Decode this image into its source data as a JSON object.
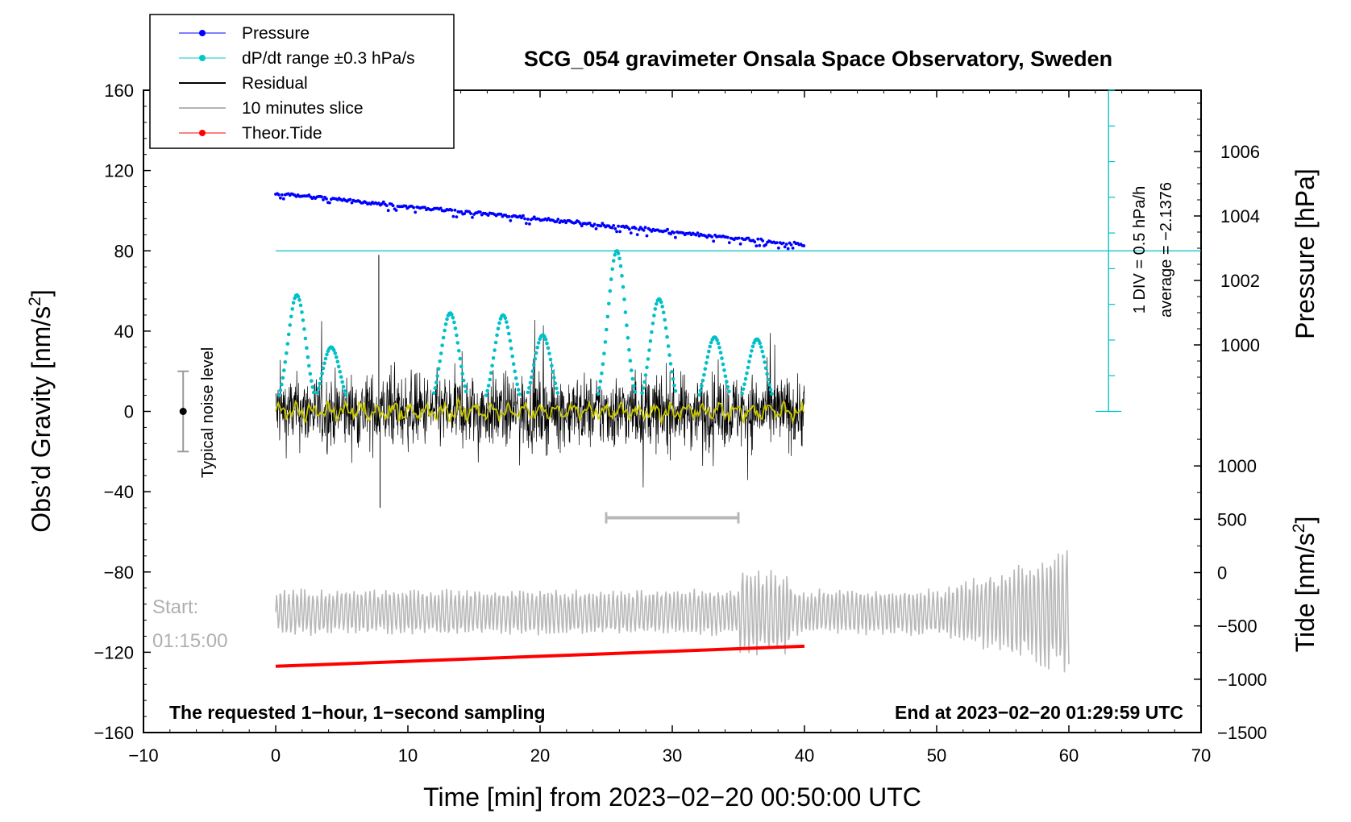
{
  "chart_data": {
    "type": "line",
    "title": "SCG_054 gravimeter Onsala Space Observatory, Sweden",
    "xlabel": "Time [min] from 2023−02−20 00:50:00 UTC",
    "ylabel_left_main": "Obs’d Gravity [nm/s",
    "ylabel_left_sup": "2",
    "ylabel_left_end": "]",
    "ylabel_right_pressure": "Pressure [hPa]",
    "ylabel_right_tide_main": "Tide [nm/s",
    "ylabel_right_tide_sup": "2",
    "ylabel_right_tide_end": "]",
    "xlim": [
      -10,
      70
    ],
    "ylim": [
      -160,
      160
    ],
    "pressure_lim": [
      997.9,
      1007.9
    ],
    "tide_lim": [
      -1500,
      1500
    ],
    "x_ticks": [
      -10,
      0,
      10,
      20,
      30,
      40,
      50,
      60,
      70
    ],
    "x_tick_labels": [
      "−10",
      "0",
      "10",
      "20",
      "30",
      "40",
      "50",
      "60",
      "70"
    ],
    "y_ticks": [
      -160,
      -120,
      -80,
      -40,
      0,
      40,
      80,
      120,
      160
    ],
    "y_tick_labels": [
      "−160",
      "−120",
      "−80",
      "−40",
      "0",
      "40",
      "80",
      "120",
      "160"
    ],
    "pressure_ticks": [
      1000,
      1002,
      1004,
      1006
    ],
    "pressure_tick_labels": [
      "1000",
      "1002",
      "1004",
      "1006"
    ],
    "tide_ticks": [
      -1500,
      -1000,
      -500,
      0,
      500,
      1000
    ],
    "tide_tick_labels": [
      "−1500",
      "−1000",
      "−500",
      "0",
      "500",
      "1000"
    ],
    "legend": [
      {
        "label": "Pressure",
        "color": "#0000ff",
        "marker": true
      },
      {
        "label": "dP/dt range ±0.3 hPa/s",
        "color": "#00c8c8",
        "marker": true
      },
      {
        "label": "Residual",
        "color": "#000000",
        "marker": false
      },
      {
        "label": "10 minutes slice",
        "color": "#b4b4b4",
        "marker": false
      },
      {
        "label": "Theor.Tide",
        "color": "#ff0000",
        "marker": true
      }
    ],
    "series": [
      {
        "name": "Pressure",
        "axis": "pressure",
        "x_range": [
          0,
          40
        ],
        "start": 1004.7,
        "end": 1003.1
      },
      {
        "name": "dP/dt range",
        "axis": "gravity",
        "baseline": 80,
        "peaks": [
          [
            1.6,
            58
          ],
          [
            4.2,
            32
          ],
          [
            13.2,
            49
          ],
          [
            17.2,
            48
          ],
          [
            20.2,
            38
          ],
          [
            25.8,
            80
          ],
          [
            29.0,
            56
          ],
          [
            33.2,
            37
          ],
          [
            36.4,
            36
          ]
        ]
      },
      {
        "name": "Residual",
        "axis": "gravity",
        "x_range": [
          0,
          40
        ],
        "typical_range": [
          -20,
          20
        ],
        "max": 78,
        "min": -48
      },
      {
        "name": "10 minutes slice",
        "axis": "gravity",
        "x_range": [
          0,
          60
        ],
        "center": -100,
        "bracket": [
          25,
          35
        ]
      },
      {
        "name": "Theor.Tide",
        "axis": "gravity",
        "x_range": [
          0,
          40
        ],
        "start": -127,
        "end": -117
      }
    ],
    "noise_bar": {
      "x": -7,
      "center": 0,
      "half_range": 20,
      "label": "Typical noise level"
    },
    "pressure_scale": {
      "label": "1 DIV = 0.5 hPa/h",
      "average_label": "average = −2.1376"
    },
    "start_label": "Start:",
    "start_time": "01:15:00",
    "note_left": "The requested 1−hour, 1−second sampling",
    "note_right": "End at 2023−02−20 01:29:59 UTC"
  },
  "colors": {
    "pressure": "#0000ff",
    "dpdt": "#00c0c8",
    "residual": "#000000",
    "slice": "#b8b8b8",
    "tide": "#ff0000",
    "filtered": "#c8c800"
  }
}
